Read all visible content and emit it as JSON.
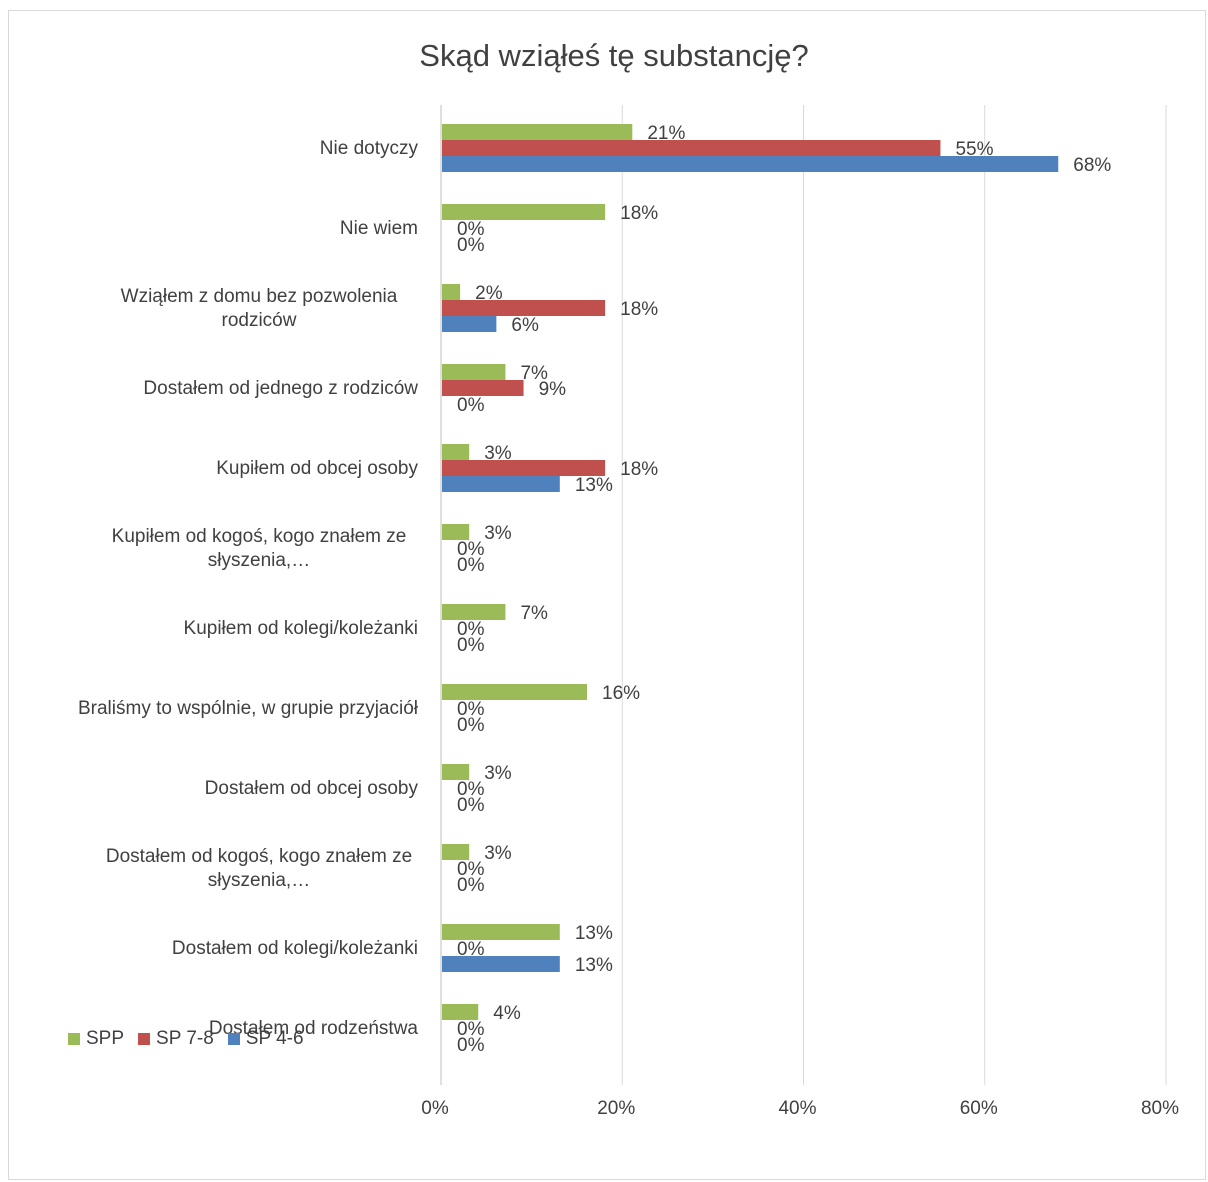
{
  "chart_data": {
    "type": "bar",
    "orientation": "horizontal",
    "title": "Skąd wziąłeś tę substancję?",
    "xlabel": "",
    "ylabel": "",
    "xlim": [
      0,
      80
    ],
    "x_ticks": [
      "0%",
      "20%",
      "40%",
      "60%",
      "80%"
    ],
    "grid": "vertical",
    "legend_position": "bottom-left",
    "categories": [
      [
        "Nie dotyczy"
      ],
      [
        "Nie wiem"
      ],
      [
        "Wziąłem z domu bez pozwolenia",
        "rodziców"
      ],
      [
        "Dostałem od jednego z rodziców"
      ],
      [
        "Kupiłem od obcej osoby"
      ],
      [
        "Kupiłem od kogoś, kogo znałem ze",
        "słyszenia,…"
      ],
      [
        "Kupiłem od kolegi/koleżanki"
      ],
      [
        "Braliśmy to wspólnie, w grupie przyjaciół"
      ],
      [
        "Dostałem od obcej osoby"
      ],
      [
        "Dostałem od kogoś, kogo znałem ze",
        "słyszenia,…"
      ],
      [
        "Dostałem od kolegi/koleżanki"
      ],
      [
        "Dostałem od rodzeństwa"
      ]
    ],
    "series": [
      {
        "name": "SPP",
        "color": "#9bbb59",
        "values": [
          21,
          18,
          2,
          7,
          3,
          3,
          7,
          16,
          3,
          3,
          13,
          4
        ]
      },
      {
        "name": "SP 7-8",
        "color": "#c0504d",
        "values": [
          55,
          0,
          18,
          9,
          18,
          0,
          0,
          0,
          0,
          0,
          0,
          0
        ]
      },
      {
        "name": "SP 4-6",
        "color": "#4f81bd",
        "values": [
          68,
          0,
          6,
          0,
          13,
          0,
          0,
          0,
          0,
          0,
          13,
          0
        ]
      }
    ]
  }
}
